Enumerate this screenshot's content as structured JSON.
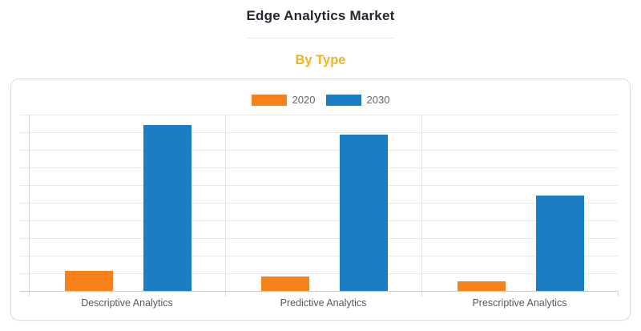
{
  "header": {
    "title": "Edge Analytics Market",
    "subtitle": "By Type"
  },
  "legend": {
    "items": [
      {
        "label": "2020",
        "color": "#F8821A"
      },
      {
        "label": "2030",
        "color": "#1B7EC4"
      }
    ]
  },
  "colors": {
    "series_2020": "#F8821A",
    "series_2030": "#1B7EC4",
    "subtitle_accent": "#F5B01E",
    "title_text": "#23272E",
    "category_label_text": "#595959",
    "legend_text": "#666666",
    "gridline": "#E8E8E8",
    "axis_line": "#C9C9C9",
    "card_border": "#DCDCDC"
  },
  "chart_data": {
    "type": "bar",
    "title": "Edge Analytics Market",
    "subtitle": "By Type",
    "categories": [
      "Descriptive Analytics",
      "Predictive Analytics",
      "Prescriptive Analytics"
    ],
    "series": [
      {
        "name": "2020",
        "color": "#F8821A",
        "values": [
          11.4,
          8.2,
          5.4
        ]
      },
      {
        "name": "2030",
        "color": "#1B7EC4",
        "values": [
          94.2,
          88.5,
          54.2
        ]
      }
    ],
    "ylabel": "",
    "xlabel": "",
    "ylim": [
      0,
      100
    ],
    "y_gridline_step": 10,
    "y_tick_labels_visible": false,
    "grid": true,
    "legend_position": "top-center",
    "note_values_scale": "relative 0-100 estimated from unlabeled gridlines (10 intervals)"
  }
}
